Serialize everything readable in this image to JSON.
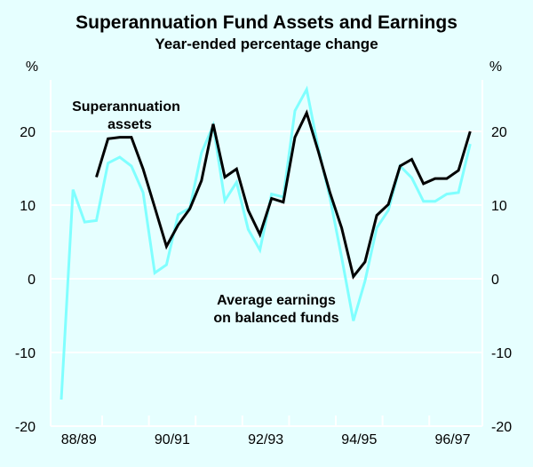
{
  "chart_data": {
    "type": "line",
    "title": "Superannuation Fund Assets and Earnings",
    "subtitle": "Year-ended percentage change",
    "ylabel_left": "%",
    "ylabel_right": "%",
    "ylim": [
      -20,
      30
    ],
    "yticks": [
      -20,
      -10,
      0,
      10,
      20
    ],
    "xtick_labels": [
      "88/89",
      "90/91",
      "92/93",
      "94/95",
      "96/97"
    ],
    "grid": true,
    "frequency": "quarterly",
    "colors": {
      "background": "#e6ffff",
      "grid": "#ffffff",
      "assets": "#000000",
      "earnings": "#80ffff"
    },
    "series": [
      {
        "name": "Superannuation assets",
        "values": [
          null,
          null,
          null,
          13.8,
          19.0,
          19.2,
          19.2,
          14.9,
          9.7,
          4.4,
          7.3,
          9.5,
          13.3,
          21.0,
          13.8,
          14.9,
          9.3,
          6.0,
          10.9,
          10.4,
          19.2,
          22.5,
          17.3,
          11.7,
          6.9,
          0.3,
          2.3,
          8.6,
          10.1,
          15.3,
          16.2,
          12.9,
          13.6,
          13.6,
          14.7,
          20.0
        ]
      },
      {
        "name": "Average earnings on balanced funds",
        "values": [
          -16.4,
          12.1,
          7.7,
          7.9,
          15.7,
          16.5,
          15.3,
          11.7,
          0.8,
          1.9,
          8.7,
          9.6,
          17.1,
          20.8,
          10.6,
          13.1,
          6.7,
          3.9,
          11.5,
          11.1,
          22.8,
          25.7,
          17.7,
          11.0,
          2.9,
          -5.7,
          -0.3,
          6.9,
          9.3,
          15.3,
          13.7,
          10.5,
          10.5,
          11.5,
          11.7,
          18.3
        ]
      }
    ],
    "annotations": {
      "assets_line1": "Superannuation",
      "assets_line2": "assets",
      "earnings_line1": "Average earnings",
      "earnings_line2": "on balanced funds"
    }
  }
}
